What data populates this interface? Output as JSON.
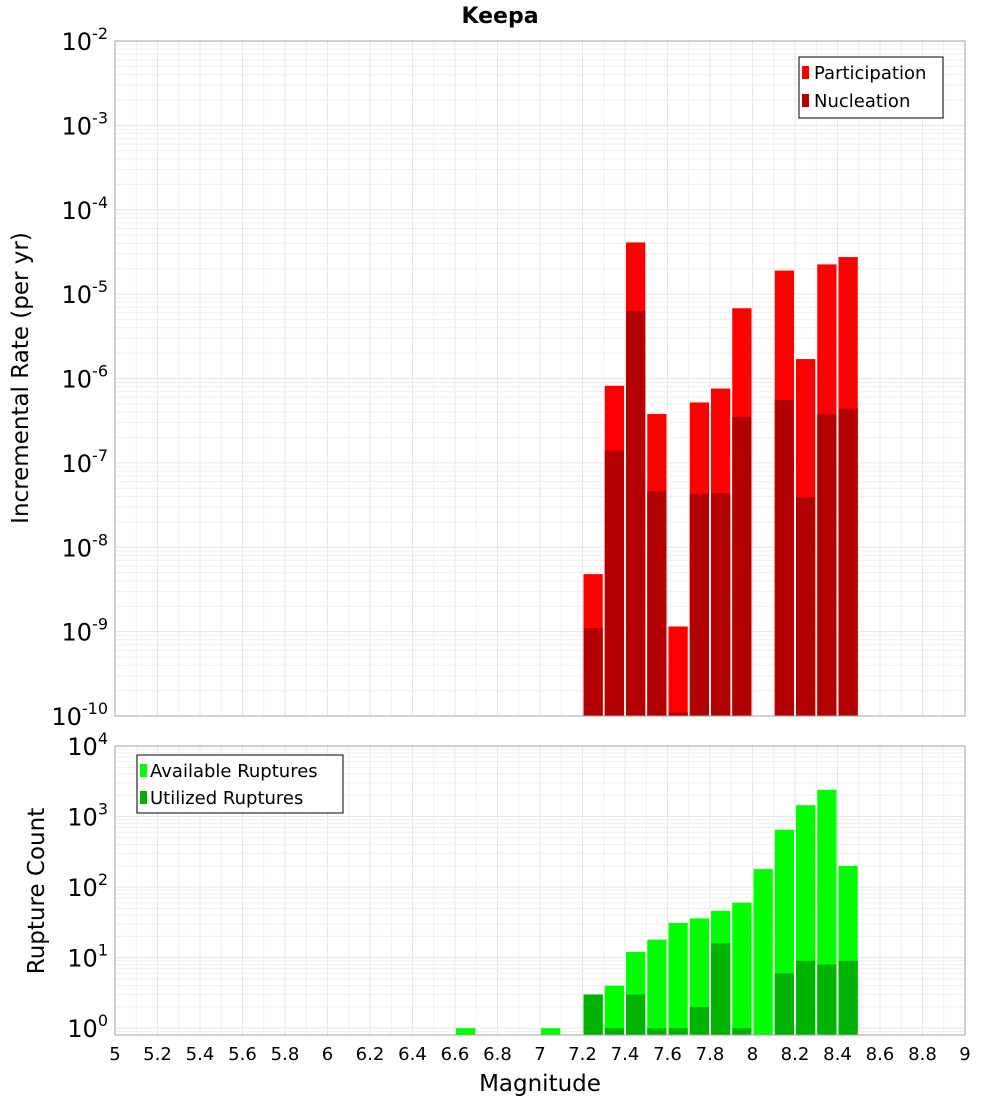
{
  "title": "Keepa",
  "colors": {
    "participation": "#ff0000",
    "nucleation": "#b30000",
    "available": "#00ff00",
    "utilized": "#00b300",
    "grid": "#e6e6e6",
    "frame": "#a0a0a0"
  },
  "chart_data": [
    {
      "type": "bar",
      "title": "Keepa",
      "xlabel": "",
      "ylabel": "Incremental Rate (per yr)",
      "yscale": "log",
      "ylim": [
        1e-10,
        0.01
      ],
      "xlim": [
        5,
        9
      ],
      "bar_width": 0.1,
      "legend_position": "top-right",
      "series": [
        {
          "name": "Participation",
          "x": [
            7.25,
            7.35,
            7.45,
            7.55,
            7.65,
            7.75,
            7.85,
            7.95,
            8.15,
            8.25,
            8.35,
            8.45
          ],
          "values": [
            4.8e-09,
            8.2e-07,
            4.1e-05,
            3.8e-07,
            1.15e-09,
            5.2e-07,
            7.6e-07,
            6.8e-06,
            1.9e-05,
            1.7e-06,
            2.25e-05,
            2.75e-05
          ]
        },
        {
          "name": "Nucleation",
          "x": [
            7.25,
            7.35,
            7.45,
            7.55,
            7.65,
            7.75,
            7.85,
            7.95,
            8.15,
            8.25,
            8.35,
            8.45
          ],
          "values": [
            1.1e-09,
            1.4e-07,
            6.3e-06,
            4.6e-08,
            1.1e-10,
            4.3e-08,
            4.4e-08,
            3.5e-07,
            5.6e-07,
            3.9e-08,
            3.8e-07,
            4.4e-07
          ]
        }
      ]
    },
    {
      "type": "bar",
      "title": "",
      "xlabel": "Magnitude",
      "ylabel": "Rupture Count",
      "yscale": "log",
      "ylim": [
        0.8,
        10000
      ],
      "xlim": [
        5,
        9
      ],
      "bar_width": 0.1,
      "legend_position": "top-left",
      "xticks": [
        "5",
        "5.2",
        "5.4",
        "5.6",
        "5.8",
        "6",
        "6.2",
        "6.4",
        "6.6",
        "6.8",
        "7",
        "7.2",
        "7.4",
        "7.6",
        "7.8",
        "8",
        "8.2",
        "8.4",
        "8.6",
        "8.8",
        "9"
      ],
      "series": [
        {
          "name": "Available Ruptures",
          "x": [
            6.65,
            7.05,
            7.25,
            7.35,
            7.45,
            7.55,
            7.65,
            7.75,
            7.85,
            7.95,
            8.05,
            8.15,
            8.25,
            8.35,
            8.45
          ],
          "values": [
            1,
            1,
            3,
            4,
            12,
            18,
            31,
            36,
            46,
            60,
            180,
            650,
            1450,
            2400,
            200
          ]
        },
        {
          "name": "Utilized Ruptures",
          "x": [
            7.25,
            7.35,
            7.45,
            7.55,
            7.65,
            7.75,
            7.85,
            7.95,
            8.15,
            8.25,
            8.35,
            8.45
          ],
          "values": [
            3,
            1,
            3,
            1,
            1,
            2,
            16,
            1,
            6,
            9,
            8,
            9
          ]
        }
      ]
    }
  ]
}
